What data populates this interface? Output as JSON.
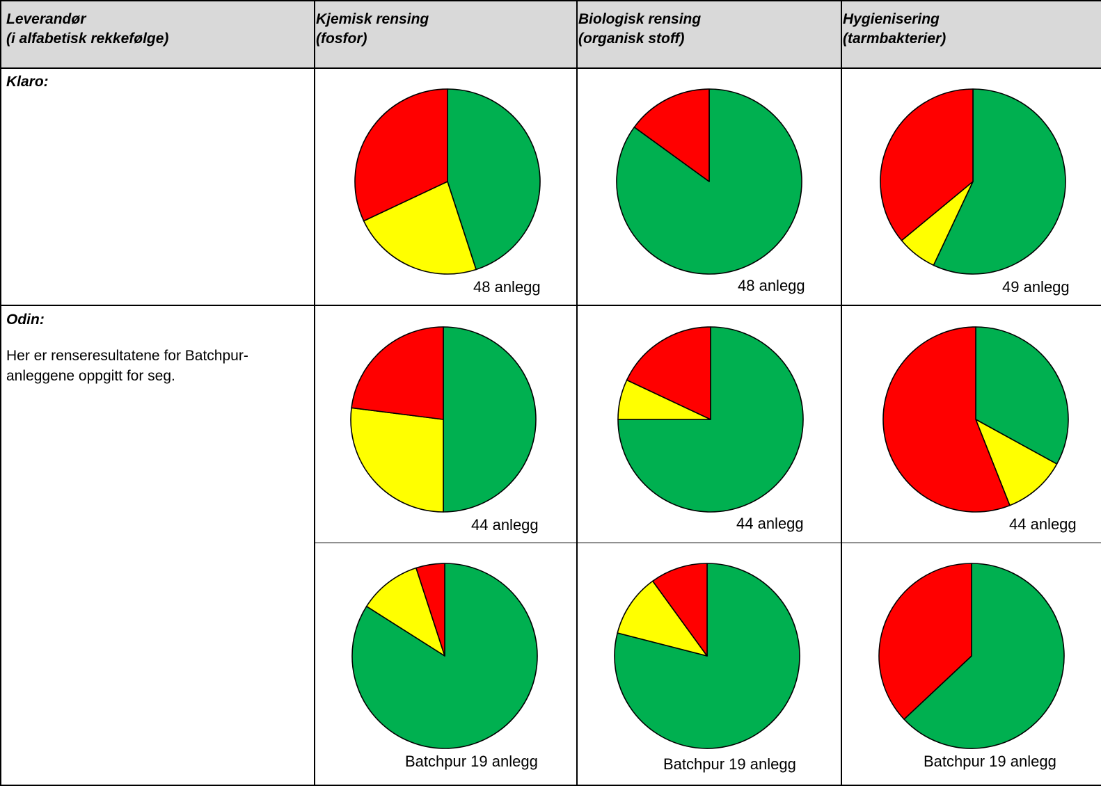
{
  "headers": {
    "col1_line1": "Leverandør",
    "col1_line2": "(i alfabetisk rekkefølge)",
    "col2_line1": "Kjemisk rensing",
    "col2_line2": "(fosfor)",
    "col3_line1": "Biologisk rensing",
    "col3_line2": "(organisk stoff)",
    "col4_line1": "Hygienisering",
    "col4_line2": "(tarmbakterier)"
  },
  "rows": {
    "klaro": {
      "name": "Klaro:"
    },
    "odin": {
      "name": "Odin:",
      "note": "Her er renseresultatene for Batchpur-anleggene oppgitt for seg."
    }
  },
  "colors": {
    "green": "#00b050",
    "yellow": "#ffff00",
    "red": "#ff0000",
    "header_bg": "#d9d9d9"
  },
  "chart_data": [
    {
      "type": "pie",
      "id": "klaro-kjemisk",
      "label": "48 anlegg",
      "slices": [
        {
          "name": "green",
          "value": 45
        },
        {
          "name": "yellow",
          "value": 23
        },
        {
          "name": "red",
          "value": 32
        }
      ]
    },
    {
      "type": "pie",
      "id": "klaro-biologisk",
      "label": "48 anlegg",
      "slices": [
        {
          "name": "green",
          "value": 85
        },
        {
          "name": "yellow",
          "value": 0
        },
        {
          "name": "red",
          "value": 15
        }
      ]
    },
    {
      "type": "pie",
      "id": "klaro-hygienisering",
      "label": "49 anlegg",
      "slices": [
        {
          "name": "green",
          "value": 57
        },
        {
          "name": "yellow",
          "value": 7
        },
        {
          "name": "red",
          "value": 36
        }
      ]
    },
    {
      "type": "pie",
      "id": "odin-kjemisk",
      "label": "44 anlegg",
      "slices": [
        {
          "name": "green",
          "value": 50
        },
        {
          "name": "yellow",
          "value": 27
        },
        {
          "name": "red",
          "value": 23
        }
      ]
    },
    {
      "type": "pie",
      "id": "odin-biologisk",
      "label": "44 anlegg",
      "slices": [
        {
          "name": "green",
          "value": 75
        },
        {
          "name": "yellow",
          "value": 7
        },
        {
          "name": "red",
          "value": 18
        }
      ]
    },
    {
      "type": "pie",
      "id": "odin-hygienisering",
      "label": "44 anlegg",
      "slices": [
        {
          "name": "green",
          "value": 33
        },
        {
          "name": "yellow",
          "value": 11
        },
        {
          "name": "red",
          "value": 56
        }
      ]
    },
    {
      "type": "pie",
      "id": "batchpur-kjemisk",
      "label": "Batchpur 19 anlegg",
      "slices": [
        {
          "name": "green",
          "value": 84
        },
        {
          "name": "yellow",
          "value": 11
        },
        {
          "name": "red",
          "value": 5
        }
      ]
    },
    {
      "type": "pie",
      "id": "batchpur-biologisk",
      "label": "Batchpur 19 anlegg",
      "slices": [
        {
          "name": "green",
          "value": 79
        },
        {
          "name": "yellow",
          "value": 11
        },
        {
          "name": "red",
          "value": 10
        }
      ]
    },
    {
      "type": "pie",
      "id": "batchpur-hygienisering",
      "label": "Batchpur 19 anlegg",
      "slices": [
        {
          "name": "green",
          "value": 63
        },
        {
          "name": "yellow",
          "value": 0
        },
        {
          "name": "red",
          "value": 37
        }
      ]
    }
  ]
}
